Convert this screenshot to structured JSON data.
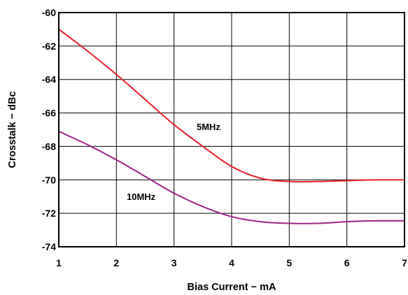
{
  "chart_data": {
    "type": "line",
    "xlabel": "Bias Current − mA",
    "ylabel": "Crosstalk − dBc",
    "xlim": [
      1,
      7
    ],
    "ylim": [
      -74,
      -60
    ],
    "xticks": [
      1,
      2,
      3,
      4,
      5,
      6,
      7
    ],
    "yticks": [
      -60,
      -62,
      -64,
      -66,
      -68,
      -70,
      -72,
      -74
    ],
    "grid": true,
    "legend": "none",
    "series": [
      {
        "name": "5MHz",
        "color": "#e8202a",
        "points": [
          [
            1,
            -61.0
          ],
          [
            1.5,
            -62.3
          ],
          [
            2,
            -63.7
          ],
          [
            2.5,
            -65.2
          ],
          [
            3,
            -66.7
          ],
          [
            3.5,
            -68.0
          ],
          [
            4,
            -69.2
          ],
          [
            4.5,
            -69.9
          ],
          [
            5,
            -70.1
          ],
          [
            5.5,
            -70.1
          ],
          [
            6,
            -70.05
          ],
          [
            6.5,
            -70.0
          ],
          [
            7,
            -70.0
          ]
        ]
      },
      {
        "name": "10MHz",
        "color": "#a0228a",
        "points": [
          [
            1,
            -67.1
          ],
          [
            1.5,
            -67.9
          ],
          [
            2,
            -68.8
          ],
          [
            2.5,
            -69.8
          ],
          [
            3,
            -70.8
          ],
          [
            3.5,
            -71.6
          ],
          [
            4,
            -72.2
          ],
          [
            4.5,
            -72.5
          ],
          [
            5,
            -72.6
          ],
          [
            5.5,
            -72.6
          ],
          [
            6,
            -72.5
          ],
          [
            6.5,
            -72.45
          ],
          [
            7,
            -72.45
          ]
        ]
      }
    ]
  }
}
